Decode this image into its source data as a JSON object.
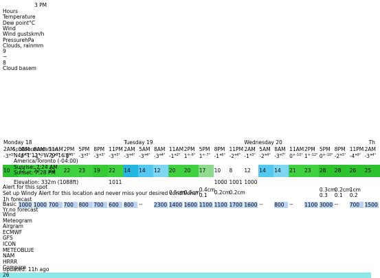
{
  "top_label": "3 PM",
  "legend": [
    "Hours",
    "Temperature",
    "Dew point°C",
    "Wind",
    "Wind gustskm/h",
    "PressurehPa",
    "Clouds, rainmm",
    "9",
    "~",
    "8",
    "Cloud basem"
  ],
  "days": [
    "Monday 18",
    "Tuesday 19",
    "Wednesday 20",
    "Th"
  ],
  "hours": [
    "2AM",
    "5AM",
    "8AM",
    "11AM",
    "2PM",
    "5PM",
    "8PM",
    "11PM",
    "2AM",
    "5AM",
    "8AM",
    "11AM",
    "2PM",
    "5PM",
    "8PM",
    "11PM",
    "2AM",
    "5AM",
    "8AM",
    "11AM",
    "2PM",
    "5PM",
    "8PM",
    "11PM",
    "2AM"
  ],
  "location": {
    "tabs": [
      "Spot forecast",
      "About location"
    ],
    "coords": "N44°1'12\", W79°16'8\"",
    "timezone": "America/Toronto (-04:00)",
    "sunrise": "Sunrise: 7:24 AM",
    "sunset": "Sunset: 7:28 PM",
    "elevation": "Elevation: 332m (1088ft)"
  },
  "temperature": [
    "-3°",
    "-2°",
    "-1°",
    "-1°",
    "-1°",
    "-3°",
    "-3°",
    "-3°",
    "-3°",
    "-3°",
    "-3°",
    "-1°",
    "1°",
    "1°",
    "-1°",
    "-2°",
    "-1°",
    "-2°",
    "-3°",
    "0°",
    "1°",
    "0°",
    "-2°",
    "-4°",
    "-3°"
  ],
  "dew_point": [
    "-3°",
    "-3°",
    "-2°",
    "-2°",
    "-3°",
    "-3°",
    "-3°",
    "-3°",
    "-4°",
    "-4°",
    "-4°",
    "-2°",
    "-6°",
    "-7°",
    "-6°",
    "-4°",
    "-3°",
    "-4°",
    "-7°",
    "-10°",
    "-12°",
    "-10°",
    "-3°",
    "-9°",
    "-4°"
  ],
  "wind": [
    10,
    22,
    22,
    22,
    22,
    23,
    19,
    22,
    14,
    14,
    12,
    20,
    20,
    17,
    10,
    8,
    12,
    14,
    14,
    21,
    23,
    28,
    28,
    26,
    25
  ],
  "wind_colors": [
    "#2fc22f",
    "#3fd13f",
    "#3fd13f",
    "#3fd13f",
    "#3fd13f",
    "#3fd13f",
    "#36c936",
    "#3fd13f",
    "#22b5e0",
    "#55c8ef",
    "#7fd6f2",
    "#3fd13f",
    "#3fd13f",
    "#8ddc8d",
    "#ffffff",
    "#ffffff",
    "#ffffff",
    "#55c8ef",
    "#7fd6f2",
    "#3fd13f",
    "#3fd13f",
    "#2fc22f",
    "#2fc22f",
    "#2fc22f",
    "#2fc22f"
  ],
  "pressure": [
    null,
    null,
    null,
    null,
    null,
    null,
    null,
    1011,
    null,
    null,
    null,
    null,
    null,
    null,
    1000,
    1001,
    1000,
    null,
    null,
    null,
    null,
    null,
    null,
    null,
    null
  ],
  "rain": [
    null,
    null,
    null,
    null,
    null,
    null,
    null,
    null,
    null,
    null,
    null,
    "0.5cm",
    "0.5cm",
    {
      "amount": "0.4cm",
      "detail": "0.1"
    },
    "0.2cm",
    "0.2cm",
    null,
    null,
    null,
    null,
    null,
    {
      "amount": "0.3cm",
      "detail": "0.3"
    },
    {
      "amount": "0.2cm",
      "detail": "0.1"
    },
    {
      "amount": "1cm",
      "detail": "0.2"
    },
    null
  ],
  "alert": {
    "title": "Alert for this spot",
    "text": "Set up Windy Alert for this location and never miss your desired conditions!"
  },
  "forecast_tabs": [
    "1h forecast",
    "Basic",
    "Yr.no forecast"
  ],
  "cloud_base": [
    null,
    1000,
    1000,
    700,
    700,
    800,
    700,
    600,
    800,
    "--",
    2300,
    1400,
    1600,
    1100,
    1100,
    1700,
    1600,
    "--",
    800,
    "--",
    1100,
    3000,
    "--",
    700,
    1500
  ],
  "menu": [
    "Wind",
    "Meteogram",
    "Airgram",
    "ECMWF",
    "GFS",
    "ICON",
    "METEOBLUE",
    "NAM",
    "HRRR",
    "Compare"
  ],
  "updated": "Updated: 11h ago",
  "bottom": "26"
}
